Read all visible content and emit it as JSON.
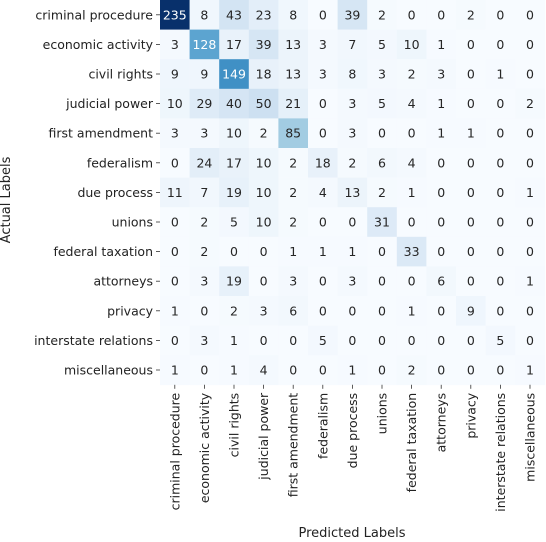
{
  "chart_data": {
    "type": "heatmap",
    "title": "",
    "xlabel": "Predicted Labels",
    "ylabel": "Actual Labels",
    "x_categories": [
      "criminal procedure",
      "economic activity",
      "civil rights",
      "judicial power",
      "first amendment",
      "federalism",
      "due process",
      "unions",
      "federal taxation",
      "attorneys",
      "privacy",
      "interstate relations",
      "miscellaneous"
    ],
    "y_categories": [
      "criminal procedure",
      "economic activity",
      "civil rights",
      "judicial power",
      "first amendment",
      "federalism",
      "due process",
      "unions",
      "federal taxation",
      "attorneys",
      "privacy",
      "interstate relations",
      "miscellaneous"
    ],
    "values": [
      [
        235,
        8,
        43,
        23,
        8,
        0,
        39,
        2,
        0,
        0,
        2,
        0,
        0
      ],
      [
        3,
        128,
        17,
        39,
        13,
        3,
        7,
        5,
        10,
        1,
        0,
        0,
        0
      ],
      [
        9,
        9,
        149,
        18,
        13,
        3,
        8,
        3,
        2,
        3,
        0,
        1,
        0
      ],
      [
        10,
        29,
        40,
        50,
        21,
        0,
        3,
        5,
        4,
        1,
        0,
        0,
        2
      ],
      [
        3,
        3,
        10,
        2,
        85,
        0,
        3,
        0,
        0,
        1,
        1,
        0,
        0
      ],
      [
        0,
        24,
        17,
        10,
        2,
        18,
        2,
        6,
        4,
        0,
        0,
        0,
        0
      ],
      [
        11,
        7,
        19,
        10,
        2,
        4,
        13,
        2,
        1,
        0,
        0,
        0,
        1
      ],
      [
        0,
        2,
        5,
        10,
        2,
        0,
        0,
        31,
        0,
        0,
        0,
        0,
        0
      ],
      [
        0,
        2,
        0,
        0,
        1,
        1,
        1,
        0,
        33,
        0,
        0,
        0,
        0
      ],
      [
        0,
        3,
        19,
        0,
        3,
        0,
        3,
        0,
        0,
        6,
        0,
        0,
        1
      ],
      [
        1,
        0,
        2,
        3,
        6,
        0,
        0,
        0,
        1,
        0,
        9,
        0,
        0
      ],
      [
        0,
        3,
        1,
        0,
        0,
        5,
        0,
        0,
        0,
        0,
        0,
        5,
        0
      ],
      [
        1,
        0,
        1,
        4,
        0,
        0,
        1,
        0,
        2,
        0,
        0,
        0,
        1
      ]
    ],
    "vmin": 0,
    "vmax": 235,
    "colormap": "Blues",
    "colorbar": false,
    "grid": false
  }
}
